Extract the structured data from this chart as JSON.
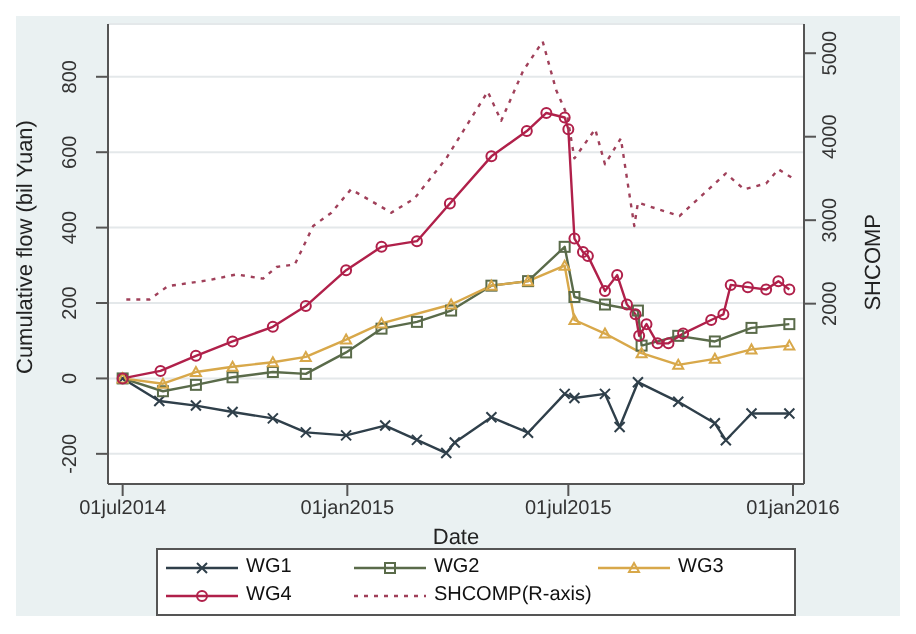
{
  "chart_data": {
    "type": "line",
    "xlabel": "Date",
    "ylabel": "Cumulative flow (bil Yuan)",
    "y2label": "SHCOMP",
    "xlim": [
      "2014-06-19",
      "2016-01-10"
    ],
    "xticks": [
      {
        "value": "2014-07-01",
        "label": "01jul2014"
      },
      {
        "value": "2015-01-01",
        "label": "01jan2015"
      },
      {
        "value": "2015-07-01",
        "label": "01jul2015"
      },
      {
        "value": "2016-01-01",
        "label": "01jan2016"
      }
    ],
    "ylim": [
      -280,
      940
    ],
    "yticks": [
      -200,
      0,
      200,
      400,
      600,
      800
    ],
    "y2lim": [
      -160,
      5350
    ],
    "y2ticks": [
      2000,
      3000,
      4000,
      5000
    ],
    "grid": "y",
    "legend": "bottom",
    "series": [
      {
        "name": "WG1",
        "color": "#2f3f4a",
        "marker": "cross",
        "x": [
          "2014-07-01",
          "2014-07-31",
          "2014-08-30",
          "2014-09-29",
          "2014-11-01",
          "2014-11-28",
          "2014-12-31",
          "2015-02-01",
          "2015-02-27",
          "2015-03-23",
          "2015-03-30",
          "2015-04-29",
          "2015-05-29",
          "2015-06-28",
          "2015-07-06",
          "2015-07-31",
          "2015-08-12",
          "2015-08-27",
          "2015-09-29",
          "2015-10-29",
          "2015-11-07",
          "2015-11-28",
          "2015-12-29"
        ],
        "values": [
          0,
          -60,
          -72,
          -89,
          -106,
          -143,
          -151,
          -125,
          -163,
          -198,
          -170,
          -103,
          -144,
          -41,
          -52,
          -41,
          -129,
          -10,
          -62,
          -119,
          -164,
          -93,
          -93
        ]
      },
      {
        "name": "WG2",
        "color": "#5a6b4a",
        "marker": "square",
        "x": [
          "2014-07-01",
          "2014-08-03",
          "2014-08-30",
          "2014-09-29",
          "2014-11-01",
          "2014-11-28",
          "2014-12-31",
          "2015-01-29",
          "2015-02-27",
          "2015-03-27",
          "2015-04-29",
          "2015-05-29",
          "2015-06-28",
          "2015-07-06",
          "2015-07-31",
          "2015-08-27",
          "2015-08-30",
          "2015-09-29",
          "2015-10-29",
          "2015-11-28",
          "2015-12-29"
        ],
        "values": [
          0,
          -34,
          -17,
          3,
          17,
          12,
          69,
          132,
          150,
          180,
          246,
          258,
          349,
          216,
          196,
          180,
          87,
          113,
          98,
          134,
          144
        ]
      },
      {
        "name": "WG3",
        "color": "#d8a84a",
        "marker": "triangle",
        "x": [
          "2014-07-01",
          "2014-08-03",
          "2014-08-30",
          "2014-09-29",
          "2014-11-01",
          "2014-11-28",
          "2014-12-31",
          "2015-01-29",
          "2015-03-27",
          "2015-04-29",
          "2015-05-29",
          "2015-06-28",
          "2015-07-06",
          "2015-07-31",
          "2015-08-30",
          "2015-09-29",
          "2015-10-29",
          "2015-11-28",
          "2015-12-29"
        ],
        "values": [
          0,
          -14,
          17,
          31,
          43,
          57,
          103,
          146,
          196,
          246,
          258,
          299,
          155,
          119,
          67,
          36,
          52,
          77,
          87
        ]
      },
      {
        "name": "WG4",
        "color": "#b0204a",
        "marker": "circle",
        "x": [
          "2014-07-01",
          "2014-08-01",
          "2014-08-30",
          "2014-09-29",
          "2014-11-01",
          "2014-11-28",
          "2014-12-31",
          "2015-01-29",
          "2015-02-27",
          "2015-03-26",
          "2015-04-29",
          "2015-05-28",
          "2015-06-13",
          "2015-06-28",
          "2015-07-01",
          "2015-07-06",
          "2015-07-13",
          "2015-07-17",
          "2015-07-31",
          "2015-08-10",
          "2015-08-18",
          "2015-08-25",
          "2015-08-28",
          "2015-09-03",
          "2015-09-12",
          "2015-09-21",
          "2015-10-03",
          "2015-10-26",
          "2015-11-05",
          "2015-11-11",
          "2015-11-25",
          "2015-12-10",
          "2015-12-20",
          "2015-12-29"
        ],
        "values": [
          0,
          20,
          60,
          98,
          137,
          192,
          287,
          349,
          364,
          464,
          589,
          656,
          704,
          692,
          661,
          371,
          335,
          325,
          232,
          274,
          196,
          170,
          113,
          144,
          93,
          93,
          119,
          155,
          170,
          248,
          242,
          236,
          258,
          236
        ]
      },
      {
        "name": "SHCOMP(R-axis)",
        "color": "#a0405a",
        "marker": "none",
        "line_style": "dotted",
        "axis": "y2",
        "x": [
          "2014-07-04",
          "2014-07-23",
          "2014-08-07",
          "2014-09-09",
          "2014-10-02",
          "2014-10-24",
          "2014-11-04",
          "2014-11-19",
          "2014-12-04",
          "2014-12-19",
          "2015-01-04",
          "2015-02-06",
          "2015-02-25",
          "2015-03-23",
          "2015-04-26",
          "2015-05-07",
          "2015-05-25",
          "2015-06-10",
          "2015-06-21",
          "2015-06-30",
          "2015-07-06",
          "2015-07-23",
          "2015-07-31",
          "2015-08-13",
          "2015-08-24",
          "2015-08-27",
          "2015-09-30",
          "2015-11-07",
          "2015-11-22",
          "2015-12-10",
          "2015-12-20",
          "2015-12-31"
        ],
        "values": [
          2050,
          2050,
          2210,
          2280,
          2350,
          2300,
          2440,
          2470,
          2930,
          3090,
          3370,
          3090,
          3260,
          3740,
          4540,
          4190,
          4790,
          5140,
          4560,
          4260,
          3740,
          4090,
          3670,
          3980,
          2930,
          3210,
          3050,
          3560,
          3370,
          3440,
          3610,
          3510
        ]
      }
    ]
  }
}
